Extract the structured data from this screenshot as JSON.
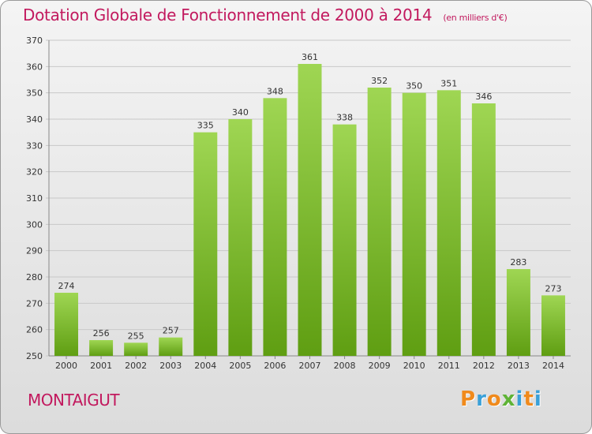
{
  "header": {
    "title": "Dotation Globale de Fonctionnement de 2000 à 2014",
    "unit": "(en milliers d'€)"
  },
  "footer": {
    "commune": "MONTAIGUT",
    "logo": "Proxiti"
  },
  "colors": {
    "title": "#c2195e",
    "bar_top": "#9fd653",
    "bar_bottom": "#5f9e12",
    "logo_letters": [
      "#f08a1c",
      "#3aa0d8",
      "#f08a1c",
      "#5fb336",
      "#3aa0d8",
      "#f08a1c",
      "#3aa0d8"
    ]
  },
  "chart_data": {
    "type": "bar",
    "title": "Dotation Globale de Fonctionnement de 2000 à 2014",
    "categories": [
      "2000",
      "2001",
      "2002",
      "2003",
      "2004",
      "2005",
      "2006",
      "2007",
      "2008",
      "2009",
      "2010",
      "2011",
      "2012",
      "2013",
      "2014"
    ],
    "values": [
      274,
      256,
      255,
      257,
      335,
      340,
      348,
      361,
      338,
      352,
      350,
      351,
      346,
      283,
      273
    ],
    "ylim": [
      250,
      370
    ],
    "yticks": [
      250,
      260,
      270,
      280,
      290,
      300,
      310,
      320,
      330,
      340,
      350,
      360,
      370
    ],
    "grid": true,
    "legend": "none"
  }
}
